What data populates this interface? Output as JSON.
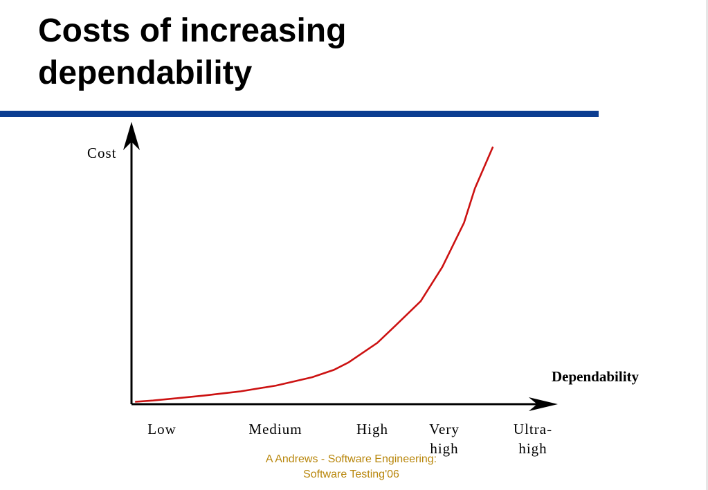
{
  "slide": {
    "title_lines": [
      "Costs of increasing",
      "dependability"
    ],
    "footer_lines": [
      "A Andrews - Software Engineering:",
      "Software Testing'06"
    ],
    "rule_color": "#0c3d91",
    "footer_color": "#b8860b"
  },
  "chart_data": {
    "type": "line",
    "ylabel": "Cost",
    "xlabel": "Dependability",
    "categories": [
      "Low",
      "Medium",
      "High",
      "Very high",
      "Ultra-high"
    ],
    "category_label_lines": [
      [
        "Low"
      ],
      [
        "Medium"
      ],
      [
        "High"
      ],
      [
        "Very",
        "high"
      ],
      [
        "Ultra-",
        "high"
      ]
    ],
    "x": [
      0.05,
      0.3,
      1,
      1.5,
      2,
      2.5,
      2.8,
      3,
      3.4,
      3.65,
      4,
      4.3,
      4.6,
      4.75,
      5
    ],
    "y": [
      1,
      1.5,
      3.5,
      5.2,
      7.6,
      11,
      14,
      17,
      25,
      32,
      42,
      56,
      74,
      88,
      105
    ],
    "series_color": "#cc1111",
    "xlim": [
      0,
      5.6
    ],
    "ylim": [
      0,
      105
    ],
    "grid": false,
    "ticks_visible": false,
    "y_axis_values_shown": false
  }
}
